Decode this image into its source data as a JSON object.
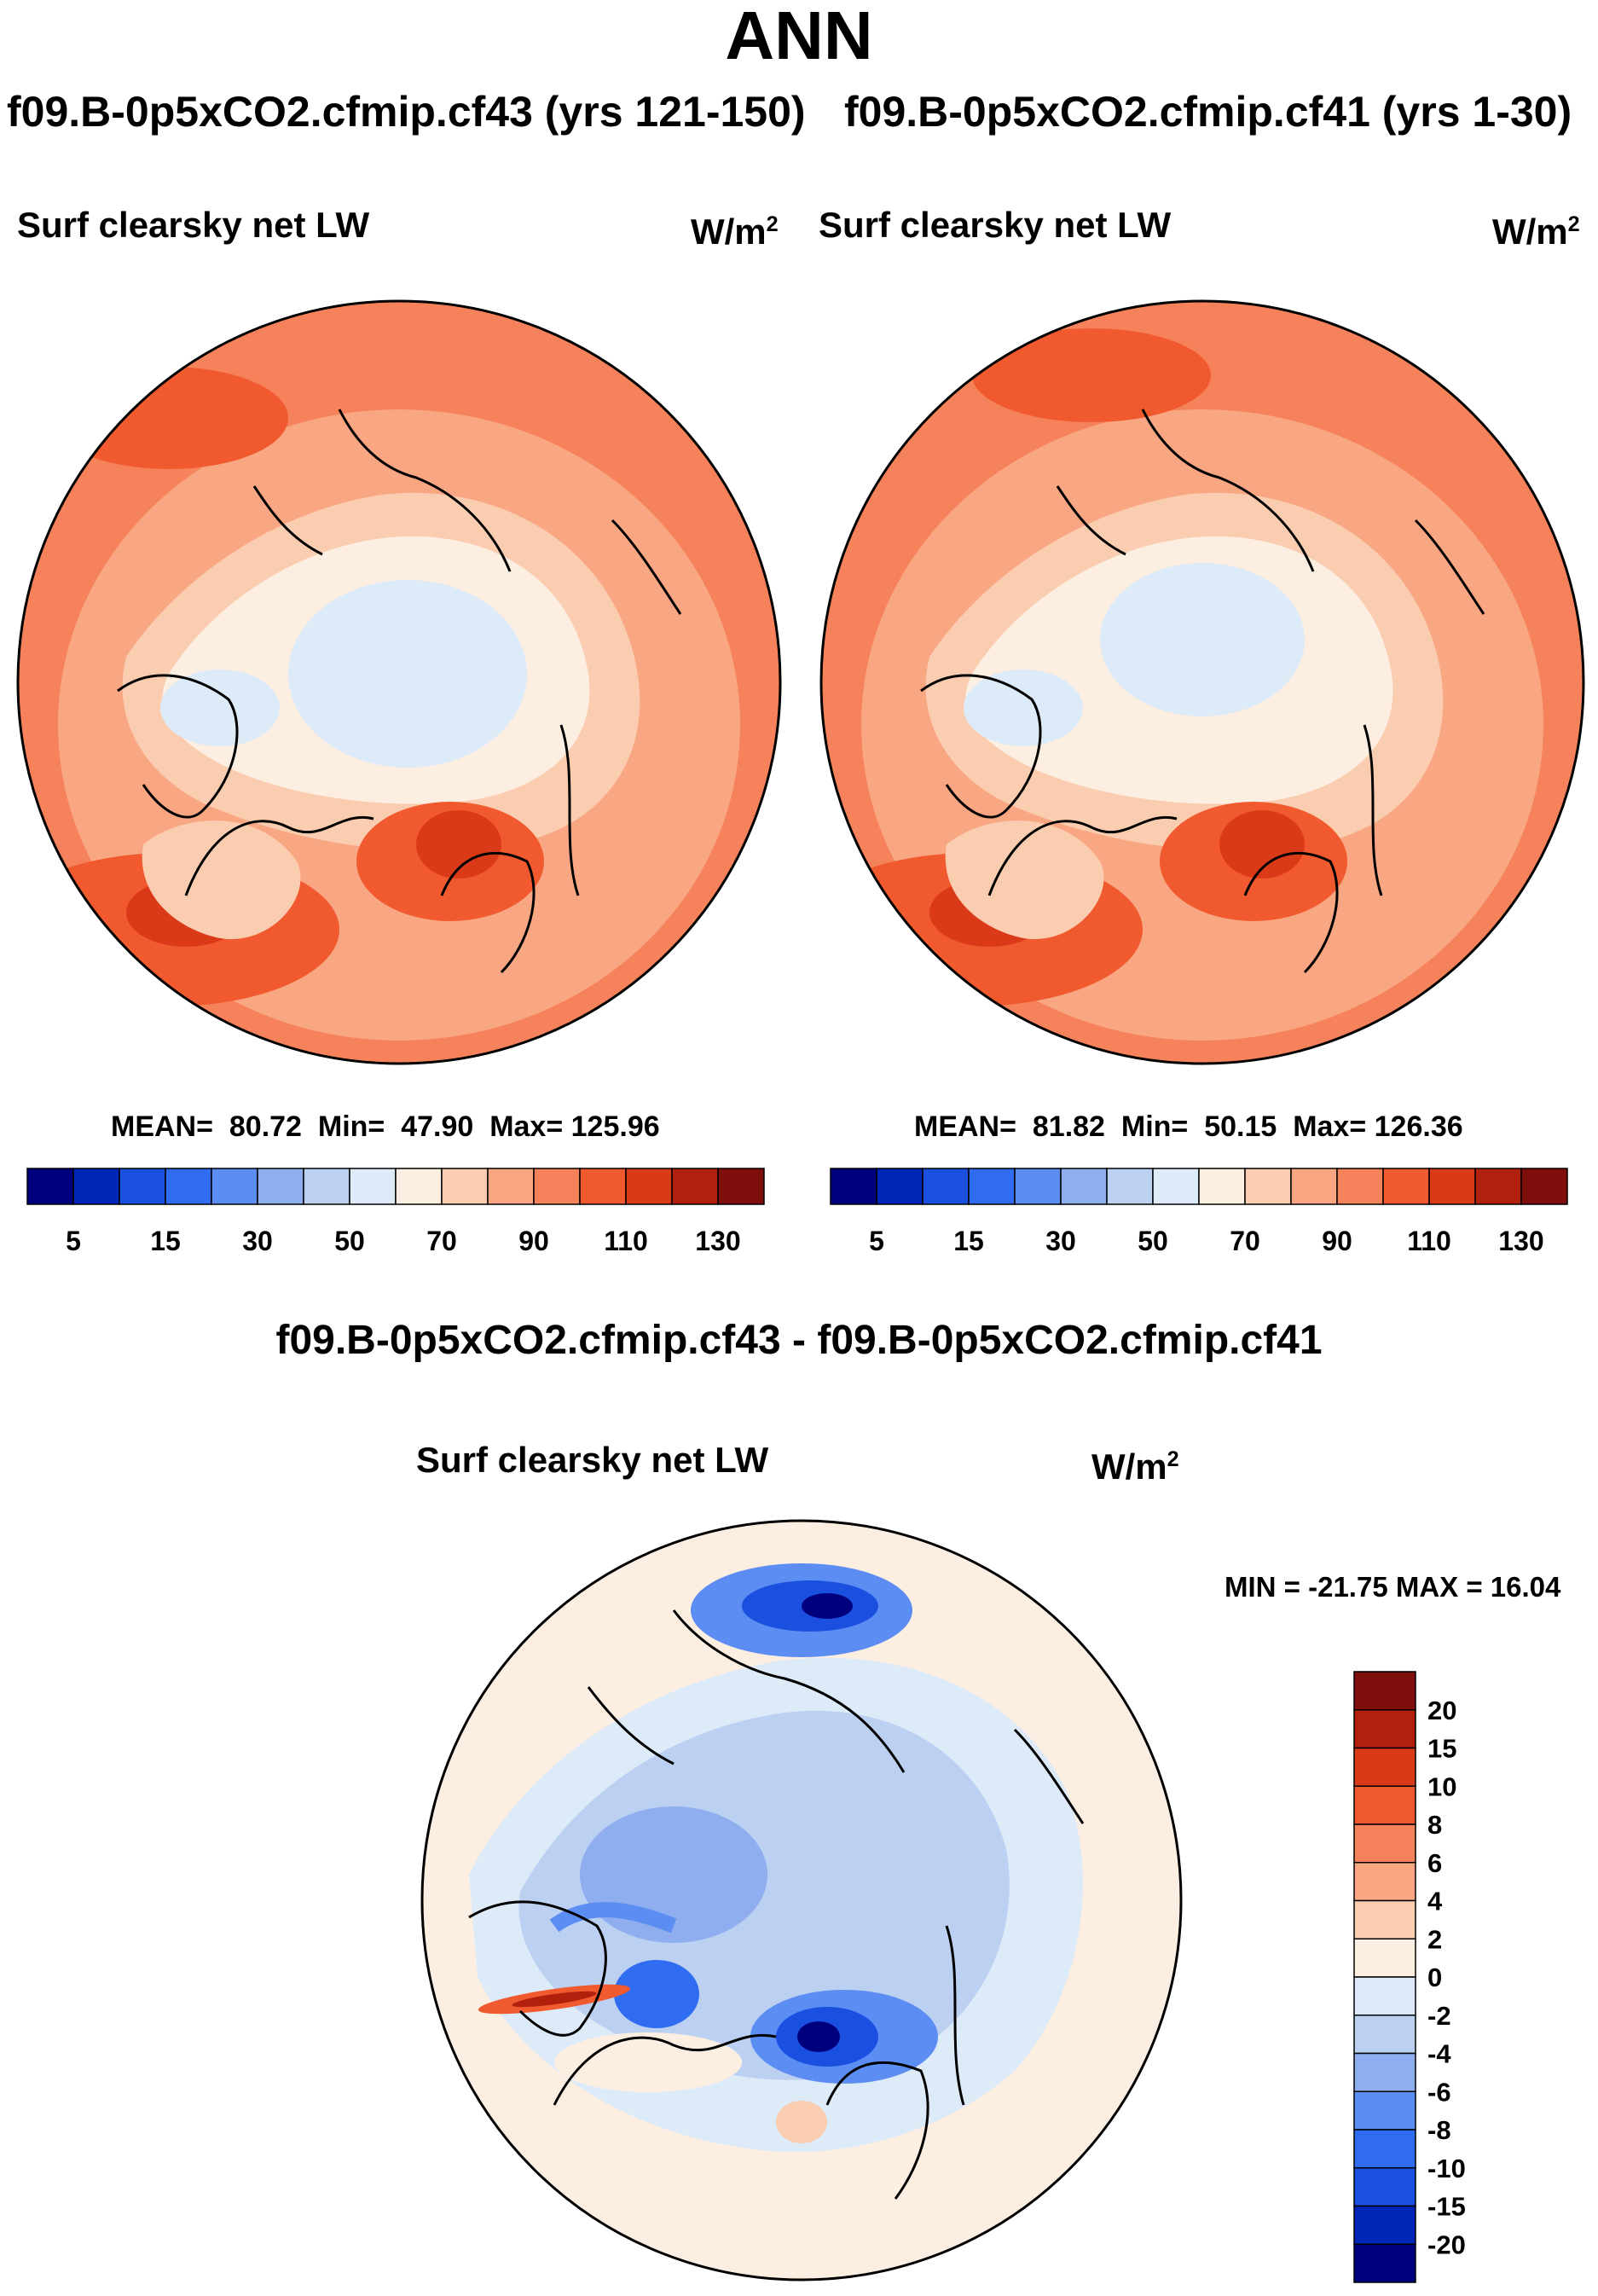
{
  "title": "ANN",
  "left_panel": {
    "case_title": "f09.B-0p5xCO2.cfmip.cf43 (yrs 121-150)",
    "variable": "Surf clearsky net LW",
    "units_base": "W/m",
    "units_exp": "2",
    "stats": {
      "mean_label": "MEAN=",
      "mean": "80.72",
      "min_label": "Min=",
      "min": "47.90",
      "max_label": "Max=",
      "max": "125.96"
    }
  },
  "right_panel": {
    "case_title": "f09.B-0p5xCO2.cfmip.cf41 (yrs 1-30)",
    "variable": "Surf clearsky net LW",
    "units_base": "W/m",
    "units_exp": "2",
    "stats": {
      "mean_label": "MEAN=",
      "mean": "81.82",
      "min_label": "Min=",
      "min": "50.15",
      "max_label": "Max=",
      "max": "126.36"
    }
  },
  "diff_panel": {
    "case_title": "f09.B-0p5xCO2.cfmip.cf43 - f09.B-0p5xCO2.cfmip.cf41",
    "variable": "Surf clearsky net LW",
    "units_base": "W/m",
    "units_exp": "2",
    "minmax": "MIN = -21.75 MAX =  16.04"
  },
  "abs_colorbar": {
    "colors": [
      "#00007f",
      "#0026b8",
      "#1a4fe0",
      "#2f6cf2",
      "#5b8df2",
      "#8eaef0",
      "#bcd0f2",
      "#ddeaf8",
      "#fdeee2",
      "#fbcdb0",
      "#f9a683",
      "#f5825a",
      "#f05a2e",
      "#db3a18",
      "#b0200c",
      "#7f0f0c"
    ],
    "labels": [
      "5",
      "15",
      "30",
      "50",
      "70",
      "90",
      "110",
      "130"
    ]
  },
  "diff_colorbar": {
    "colors": [
      "#7f0f0c",
      "#b0200c",
      "#db3a18",
      "#f05a2e",
      "#f5825a",
      "#f9a683",
      "#fbcdb0",
      "#fdeee2",
      "#ddeaf8",
      "#bcd0f2",
      "#8eaef0",
      "#5b8df2",
      "#2f6cf2",
      "#1a4fe0",
      "#0026b8",
      "#00007f"
    ],
    "labels": [
      "20",
      "15",
      "10",
      "8",
      "6",
      "4",
      "2",
      "0",
      "-2",
      "-4",
      "-6",
      "-8",
      "-10",
      "-15",
      "-20"
    ]
  }
}
